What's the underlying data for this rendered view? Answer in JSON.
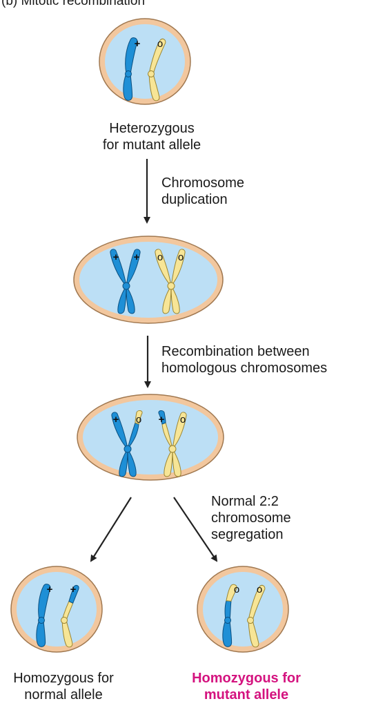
{
  "header": {
    "title": "(b) Mitotic recombination"
  },
  "cells": [
    {
      "id": "start",
      "label": [
        "Heterozygous",
        "for mutant allele"
      ]
    },
    {
      "id": "duplicated"
    },
    {
      "id": "recombined"
    },
    {
      "id": "daughter_normal",
      "label": [
        "Homozygous for",
        "normal allele"
      ]
    },
    {
      "id": "daughter_mutant",
      "label": [
        "Homozygous for",
        "mutant allele"
      ]
    }
  ],
  "steps": [
    {
      "label": [
        "Chromosome",
        "duplication"
      ]
    },
    {
      "label": [
        "Recombination between",
        "homologous chromosomes"
      ]
    },
    {
      "label": [
        "Normal 2:2",
        "chromosome",
        "segregation"
      ]
    }
  ],
  "alleles": {
    "normal": "+",
    "mutant": "o"
  },
  "colors": {
    "normal_chromosome": "#1e8fd6",
    "mutant_chromosome": "#f7e596",
    "cell_membrane": "#f2c79e",
    "nucleus": "#bcdff5",
    "highlight_label": "#d4137f",
    "arrow": "#222222"
  }
}
